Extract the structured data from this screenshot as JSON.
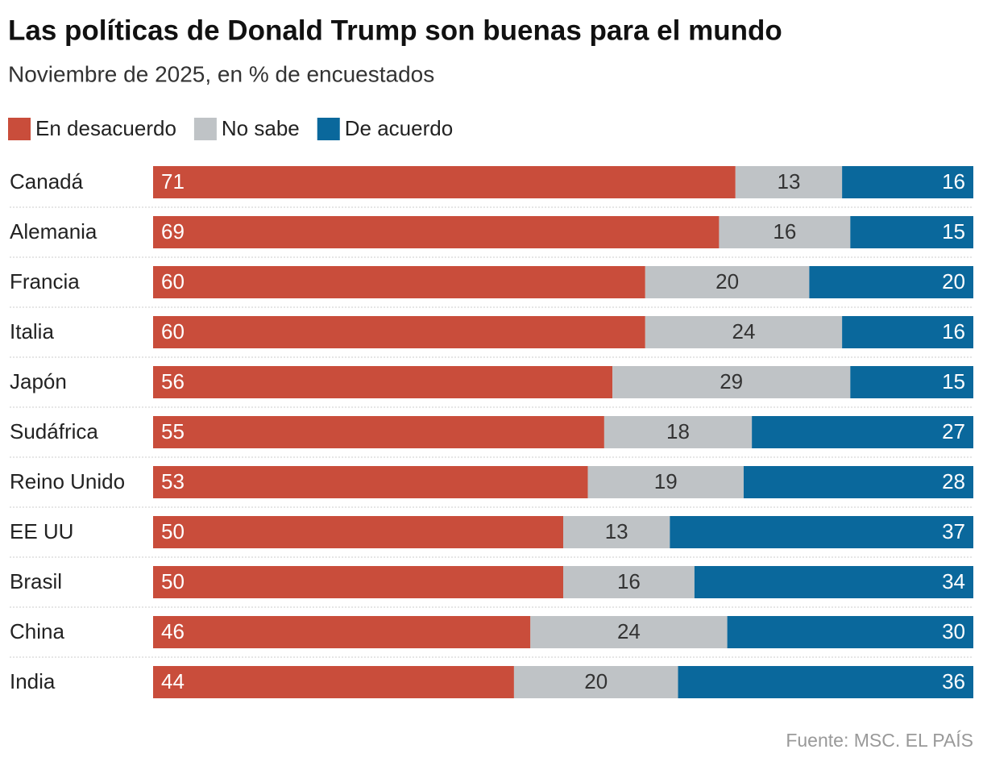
{
  "chart_data": {
    "type": "bar",
    "orientation": "horizontal",
    "stacked": true,
    "title": "Las políticas de Donald Trump son buenas para el mundo",
    "subtitle": "Noviembre de 2025, en % de encuestados",
    "source": "Fuente: MSC. EL PAÍS",
    "categories": [
      "Canadá",
      "Alemania",
      "Francia",
      "Italia",
      "Japón",
      "Sudáfrica",
      "Reino Unido",
      "EE UU",
      "Brasil",
      "China",
      "India"
    ],
    "xlim": [
      0,
      100
    ],
    "series": [
      {
        "name": "En desacuerdo",
        "color": "#c94d3b",
        "values": [
          71,
          69,
          60,
          60,
          56,
          55,
          53,
          50,
          50,
          46,
          44
        ]
      },
      {
        "name": "No sabe",
        "color": "#bfc3c6",
        "values": [
          13,
          16,
          20,
          24,
          29,
          18,
          19,
          13,
          16,
          24,
          20
        ]
      },
      {
        "name": "De acuerdo",
        "color": "#0a689c",
        "values": [
          16,
          15,
          20,
          16,
          15,
          27,
          28,
          37,
          34,
          30,
          36
        ]
      }
    ]
  }
}
